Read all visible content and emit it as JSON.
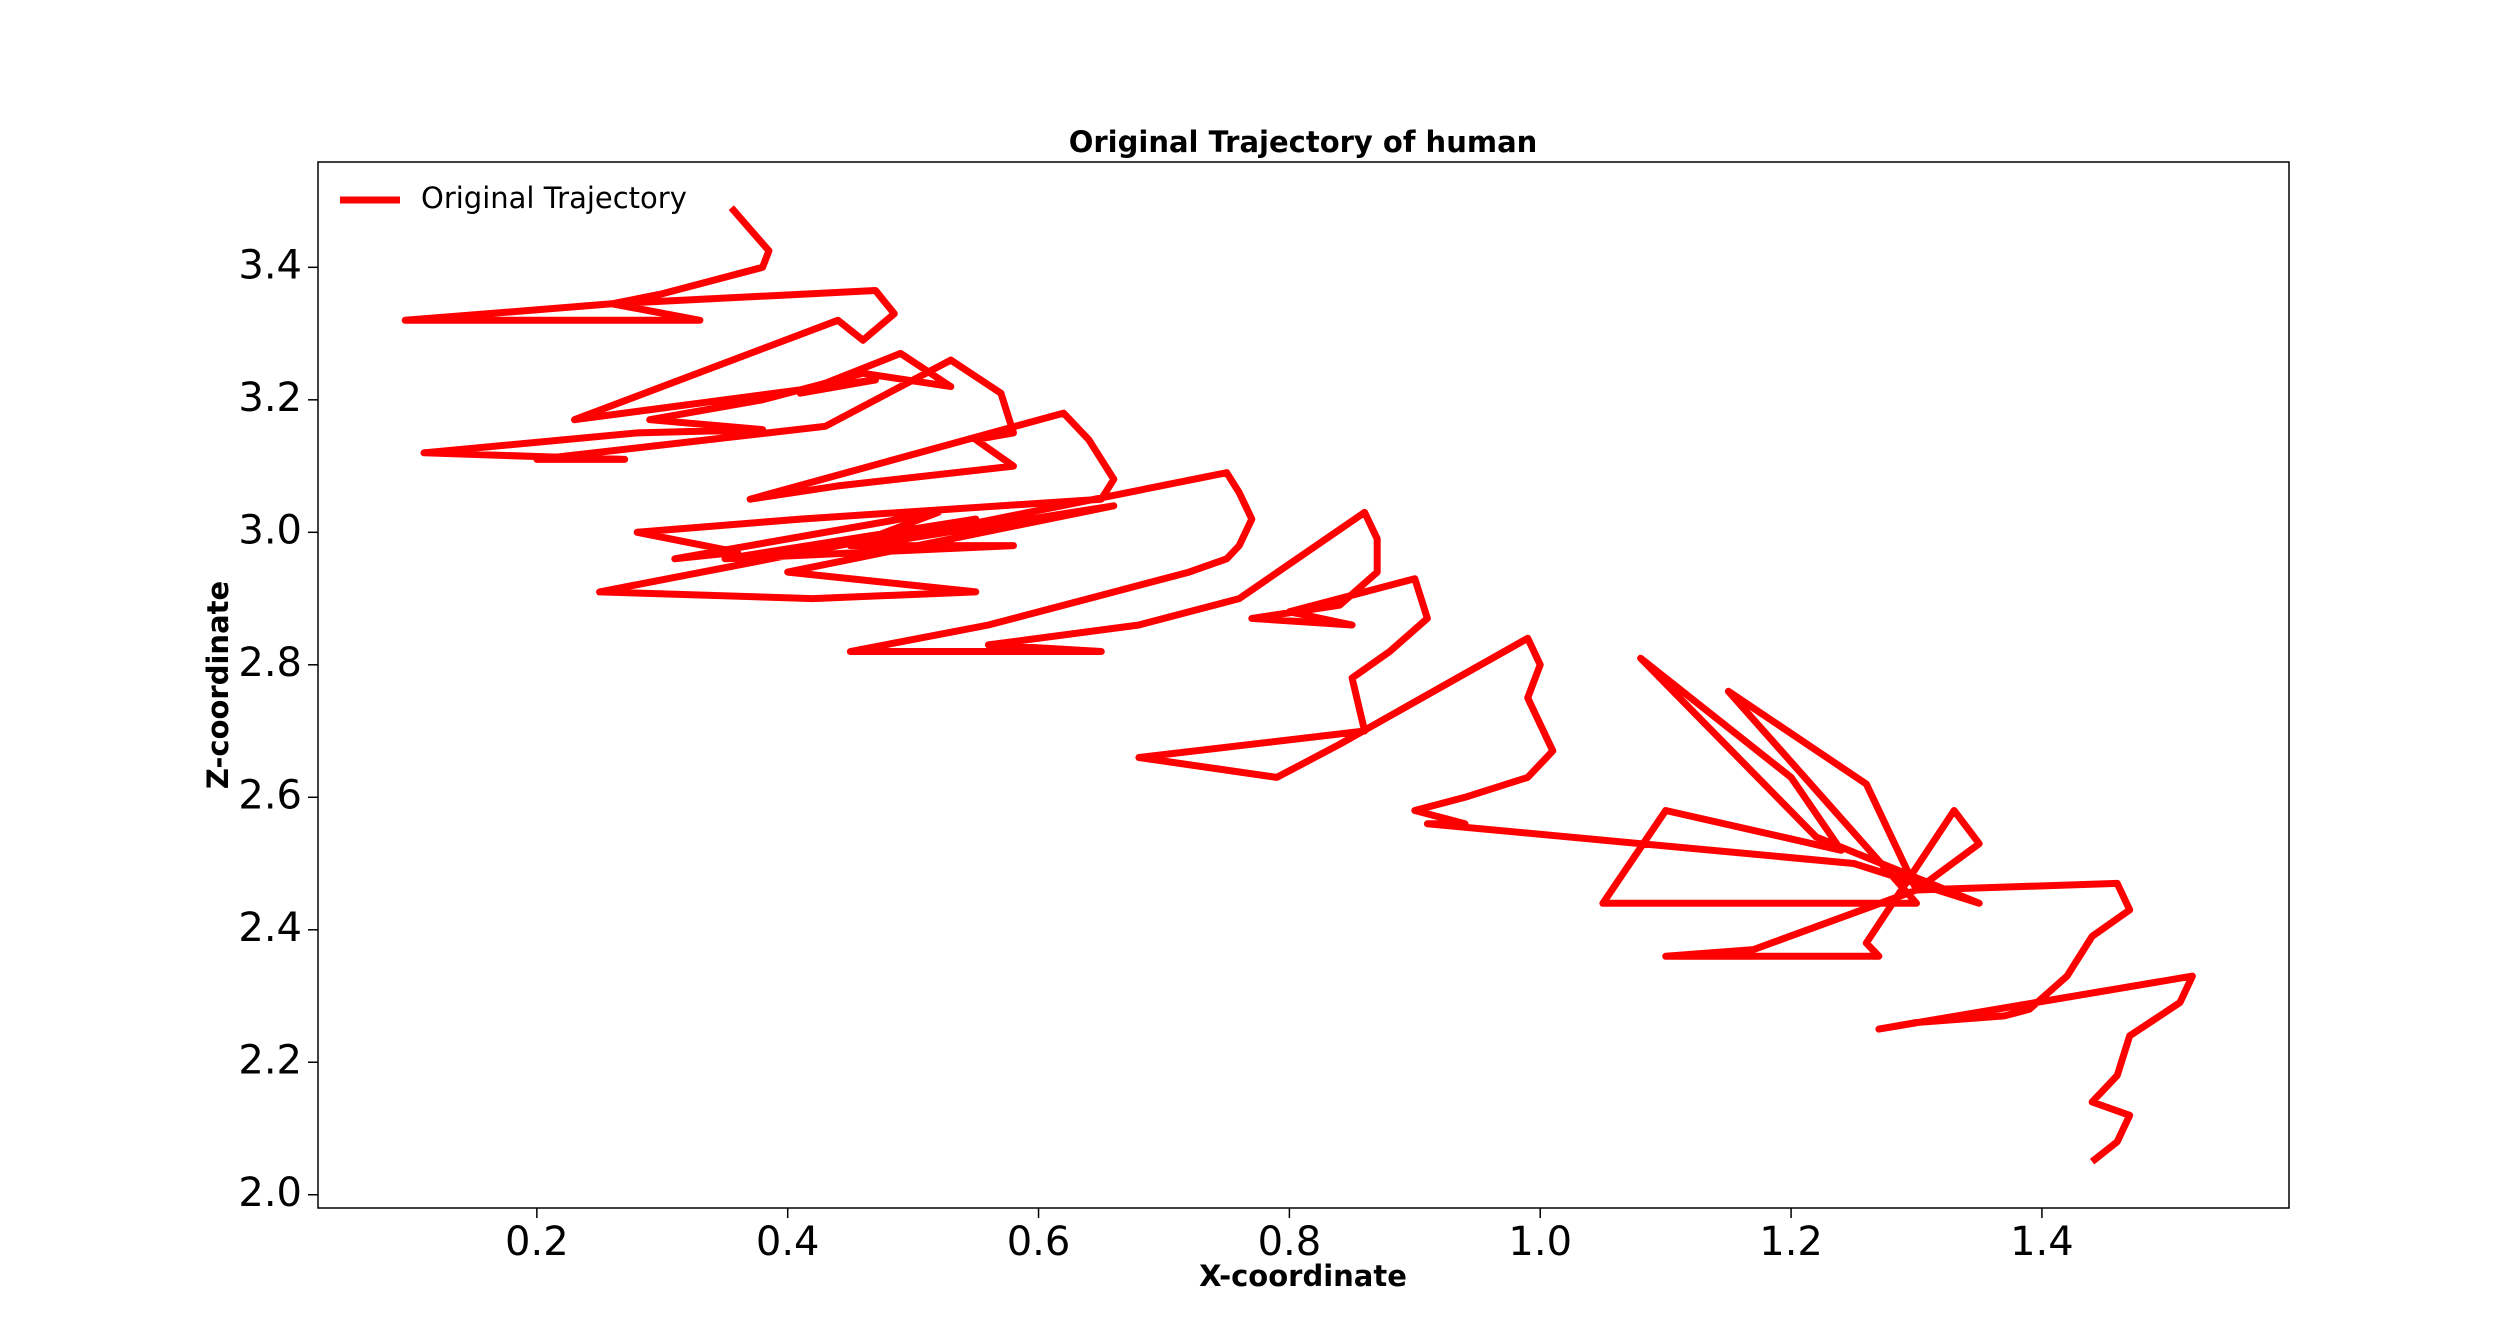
{
  "chart_data": {
    "type": "line",
    "title": "Original Trajectory of human",
    "x_label": "X-coordinate",
    "y_label": "Z-coordinate",
    "xlim": [
      0.0255,
      1.597
    ],
    "ylim": [
      1.98,
      3.559
    ],
    "xticks": [
      0.2,
      0.4,
      0.6,
      0.8,
      {
        "value": 1.0,
        "label": "1.0"
      },
      1.2,
      1.4
    ],
    "yticks": [
      {
        "value": 2.0,
        "label": "2.0"
      },
      2.2,
      2.4,
      2.6,
      2.8,
      {
        "value": 3.0,
        "label": "3.0"
      },
      3.2,
      3.4
    ],
    "legend": "upper left",
    "grid": false,
    "series": [
      {
        "name": "Original Trajectory",
        "color": "#ff0000",
        "x": [
          0.355,
          0.385,
          0.38,
          0.3,
          0.26,
          0.095,
          0.33,
          0.26,
          0.47,
          0.485,
          0.46,
          0.44,
          0.23,
          0.47,
          0.41,
          0.49,
          0.53,
          0.46,
          0.38,
          0.29,
          0.38,
          0.28,
          0.11,
          0.27,
          0.2,
          0.43,
          0.53,
          0.57,
          0.58,
          0.55,
          0.58,
          0.44,
          0.37,
          0.62,
          0.64,
          0.66,
          0.65,
          0.41,
          0.28,
          0.36,
          0.31,
          0.52,
          0.45,
          0.58,
          0.35,
          0.55,
          0.25,
          0.42,
          0.55,
          0.4,
          0.66,
          0.46,
          0.75,
          0.76,
          0.77,
          0.76,
          0.75,
          0.72,
          0.64,
          0.56,
          0.45,
          0.65,
          0.56,
          0.68,
          0.76,
          0.86,
          0.87,
          0.87,
          0.84,
          0.77,
          0.85,
          0.8,
          0.9,
          0.91,
          0.88,
          0.85,
          0.86,
          0.68,
          0.79,
          0.84,
          0.99,
          1.0,
          0.99,
          1.01,
          0.99,
          0.94,
          0.9,
          0.94,
          0.91,
          1.25,
          1.35,
          1.22,
          1.08,
          1.2,
          1.24,
          1.1,
          1.05,
          1.3,
          1.15,
          1.26,
          1.3,
          1.17,
          1.1,
          1.27,
          1.26,
          1.33,
          1.35,
          1.3,
          1.46,
          1.47,
          1.44,
          1.42,
          1.39,
          1.37,
          1.3,
          1.27,
          1.52,
          1.51,
          1.47,
          1.46,
          1.44,
          1.47,
          1.46,
          1.44
        ],
        "values": [
          3.49,
          3.425,
          3.4,
          3.36,
          3.345,
          3.32,
          3.32,
          3.345,
          3.365,
          3.33,
          3.29,
          3.32,
          3.17,
          3.23,
          3.21,
          3.27,
          3.22,
          3.24,
          3.2,
          3.17,
          3.155,
          3.15,
          3.12,
          3.11,
          3.11,
          3.16,
          3.26,
          3.21,
          3.15,
          3.14,
          3.1,
          3.07,
          3.05,
          3.18,
          3.14,
          3.08,
          3.05,
          3.02,
          3.0,
          2.97,
          2.96,
          3.03,
          2.98,
          2.98,
          2.96,
          3.02,
          2.91,
          2.9,
          2.91,
          2.94,
          3.04,
          2.98,
          3.09,
          3.06,
          3.02,
          2.98,
          2.96,
          2.94,
          2.9,
          2.86,
          2.82,
          2.82,
          2.83,
          2.86,
          2.9,
          3.03,
          2.99,
          2.94,
          2.89,
          2.87,
          2.86,
          2.88,
          2.93,
          2.87,
          2.82,
          2.78,
          2.7,
          2.66,
          2.63,
          2.68,
          2.84,
          2.8,
          2.75,
          2.67,
          2.63,
          2.6,
          2.58,
          2.56,
          2.56,
          2.5,
          2.44,
          2.54,
          2.81,
          2.63,
          2.52,
          2.58,
          2.44,
          2.44,
          2.76,
          2.62,
          2.46,
          2.37,
          2.36,
          2.36,
          2.38,
          2.58,
          2.53,
          2.46,
          2.47,
          2.43,
          2.39,
          2.33,
          2.28,
          2.27,
          2.26,
          2.25,
          2.33,
          2.29,
          2.24,
          2.18,
          2.14,
          2.12,
          2.08,
          2.05
        ]
      }
    ]
  }
}
